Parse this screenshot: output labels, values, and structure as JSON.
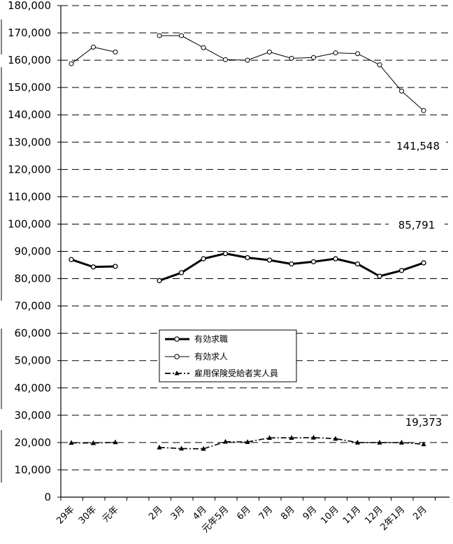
{
  "chart_data": {
    "type": "line",
    "title": "",
    "xlabel": "",
    "ylabel": "",
    "ylim": [
      0,
      180000
    ],
    "y_ticks": [
      0,
      10000,
      20000,
      30000,
      40000,
      50000,
      60000,
      70000,
      80000,
      90000,
      100000,
      110000,
      120000,
      130000,
      140000,
      150000,
      160000,
      170000,
      180000
    ],
    "y_tick_labels": [
      "0",
      "10,000",
      "20,000",
      "30,000",
      "40,000",
      "50,000",
      "60,000",
      "70,000",
      "80,000",
      "90,000",
      "100,000",
      "110,000",
      "120,000",
      "130,000",
      "140,000",
      "150,000",
      "160,000",
      "170,000",
      "180,000"
    ],
    "grid": "horizontal dashed",
    "legend_position": "center-left",
    "categories": [
      "29年",
      "30年",
      "元年",
      "",
      "2月",
      "3月",
      "4月",
      "元年5月",
      "6月",
      "7月",
      "8月",
      "9月",
      "10月",
      "11月",
      "12月",
      "2年1月",
      "2月"
    ],
    "series": [
      {
        "name": "有効求職",
        "style": "thick solid line, open circle markers",
        "values": [
          87000,
          84300,
          84500,
          null,
          79300,
          82200,
          87300,
          89200,
          87700,
          86800,
          85400,
          86200,
          87300,
          85400,
          80900,
          83000,
          85791
        ]
      },
      {
        "name": "有効求人",
        "style": "thin solid line, open circle markers",
        "values": [
          158700,
          164800,
          163000,
          null,
          169000,
          169000,
          164600,
          160200,
          160000,
          163000,
          160700,
          161000,
          162700,
          162400,
          158300,
          148700,
          141548
        ]
      },
      {
        "name": "雇用保険受給者実人員",
        "style": "dash-dot line, filled triangle markers",
        "values": [
          19900,
          19800,
          20100,
          null,
          18200,
          17800,
          17700,
          20300,
          20200,
          21700,
          21700,
          21800,
          21400,
          20000,
          20000,
          20000,
          19373
        ]
      }
    ],
    "data_labels": [
      {
        "series": "有効求人",
        "text": "141,548"
      },
      {
        "series": "有効求職",
        "text": "85,791"
      },
      {
        "series": "雇用保険受給者実人員",
        "text": "19,373"
      }
    ]
  }
}
